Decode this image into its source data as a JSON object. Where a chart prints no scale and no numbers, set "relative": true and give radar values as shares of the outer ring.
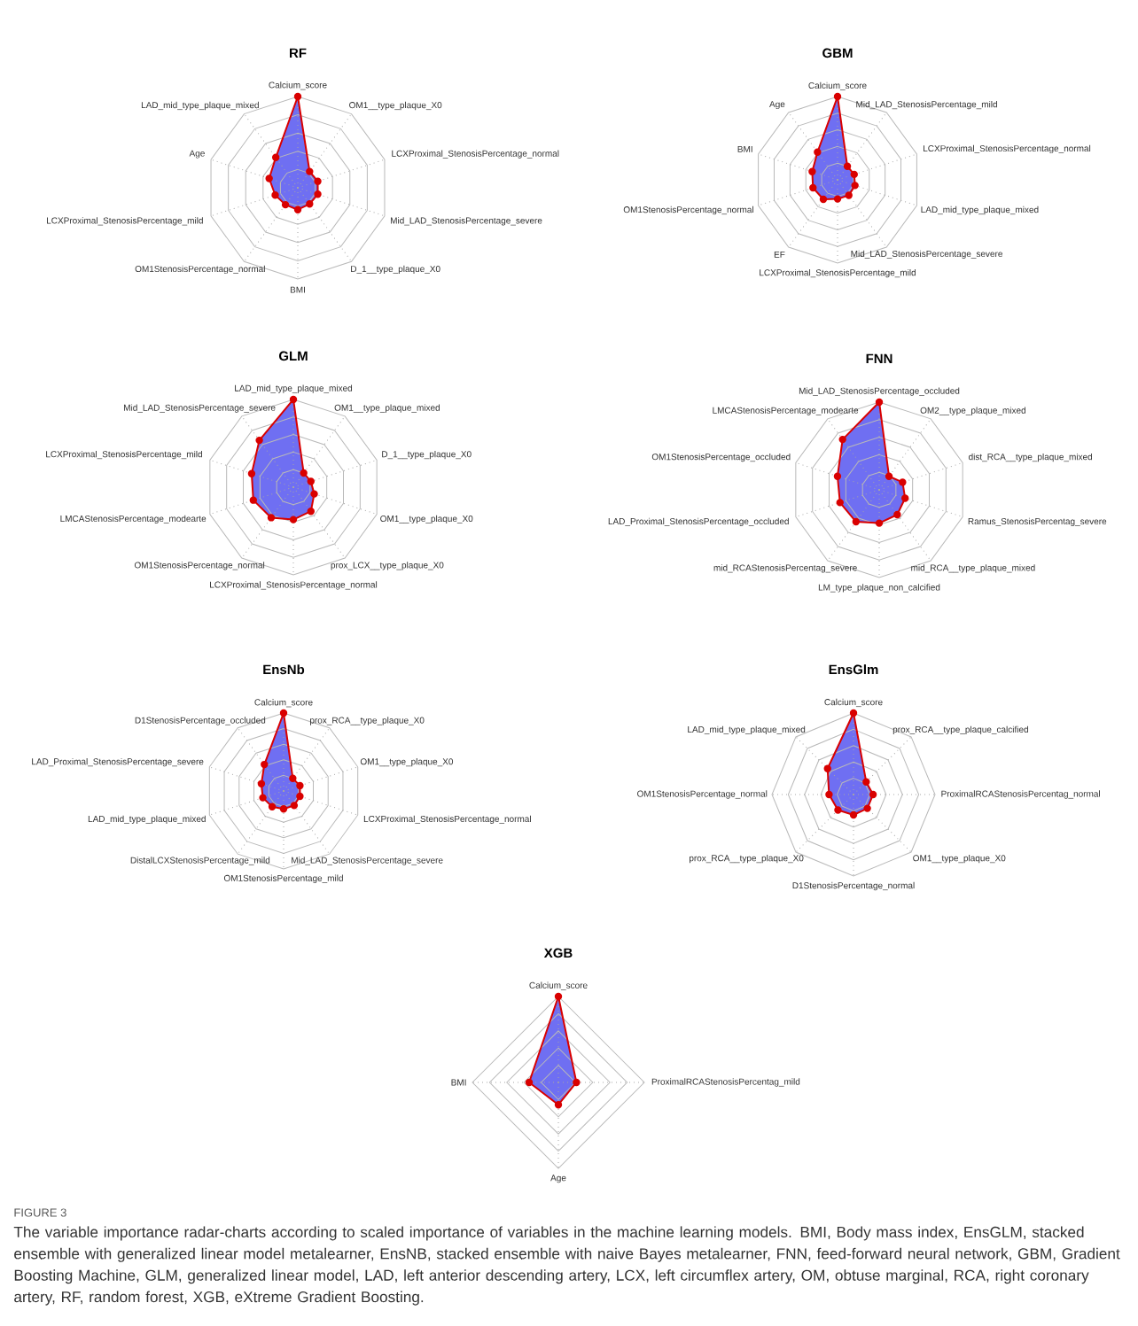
{
  "chart_data": [
    {
      "type": "radar",
      "title": "RF",
      "relative": true,
      "grid": true,
      "marker": "circle",
      "categories": [
        "Calcium_score",
        "OM1__type_plaque_X0",
        "LCXProximal_StenosisPercentage_normal",
        "Mid_LAD_StenosisPercentage_severe",
        "D_1__type_plaque_X0",
        "BMI",
        "OM1StenosisPercentage_normal",
        "LCXProximal_StenosisPercentage_mild",
        "Age",
        "LAD_mid_type_plaque_mixed"
      ],
      "series": [
        {
          "color": "#6f6ff2",
          "values": [
            1,
            0.22,
            0.23,
            0.23,
            0.22,
            0.24,
            0.23,
            0.26,
            0.33,
            0.41
          ]
        }
      ]
    },
    {
      "type": "radar",
      "title": "GBM",
      "relative": true,
      "grid": true,
      "marker": "circle",
      "categories": [
        "Calcium_score",
        "Mid_LAD_StenosisPercentage_mild",
        "LCXProximal_StenosisPercentage_normal",
        "LAD_mid_type_plaque_mixed",
        "Mid_LAD_StenosisPercentage_severe",
        "LCXProximal_StenosisPercentage_mild",
        "EF",
        "OM1StenosisPercentage_normal",
        "BMI",
        "Age"
      ],
      "series": [
        {
          "color": "#6f6ff2",
          "values": [
            1,
            0.2,
            0.21,
            0.22,
            0.23,
            0.23,
            0.29,
            0.31,
            0.32,
            0.41
          ]
        }
      ]
    },
    {
      "type": "radar",
      "title": "GLM",
      "relative": true,
      "grid": true,
      "marker": "circle",
      "categories": [
        "LAD_mid_type_plaque_mixed",
        "OM1__type_plaque_mixed",
        "D_1__type_plaque_X0",
        "OM1__type_plaque_X0",
        "prox_LCX__type_plaque_X0",
        "LCXProximal_StenosisPercentage_normal",
        "OM1StenosisPercentage_normal",
        "LMCAStenosisPercentage_modearte",
        "LCXProximal_StenosisPercentage_mild",
        "Mid_LAD_StenosisPercentage_severe"
      ],
      "series": [
        {
          "color": "#6f6ff2",
          "values": [
            1,
            0.2,
            0.21,
            0.25,
            0.34,
            0.37,
            0.43,
            0.48,
            0.5,
            0.66
          ]
        }
      ]
    },
    {
      "type": "radar",
      "title": "FNN",
      "relative": true,
      "grid": true,
      "marker": "circle",
      "categories": [
        "Mid_LAD_StenosisPercentage_occluded",
        "OM2__type_plaque_mixed",
        "dist_RCA__type_plaque_mixed",
        "Ramus_StenosisPercentag_severe",
        "mid_RCA__type_plaque_mixed",
        "LM_type_plaque_non_calcified",
        "mid_RCAStenosisPercentag_severe",
        "LAD_Proximal_StenosisPercentage_occluded",
        "OM1StenosisPercentage_occluded",
        "LMCAStenosisPercentage_modearte"
      ],
      "series": [
        {
          "color": "#6f6ff2",
          "values": [
            1,
            0.19,
            0.28,
            0.31,
            0.35,
            0.38,
            0.45,
            0.47,
            0.5,
            0.71
          ]
        }
      ]
    },
    {
      "type": "radar",
      "title": "EnsNb",
      "relative": true,
      "grid": true,
      "marker": "circle",
      "categories": [
        "Calcium_score",
        "prox_RCA__type_plaque_X0",
        "OM1__type_plaque_X0",
        "LCXProximal_StenosisPercentage_normal",
        "Mid_LAD_StenosisPercentage_severe",
        "OM1StenosisPercentage_mild",
        "DistalLCXStenosisPercentage_mild",
        "LAD_mid_type_plaque_mixed",
        "LAD_Proximal_StenosisPercentage_severe",
        "D1StenosisPercentage_occluded"
      ],
      "series": [
        {
          "color": "#6f6ff2",
          "values": [
            1,
            0.2,
            0.22,
            0.22,
            0.23,
            0.23,
            0.25,
            0.28,
            0.3,
            0.42
          ]
        }
      ]
    },
    {
      "type": "radar",
      "title": "EnsGlm",
      "relative": true,
      "grid": true,
      "marker": "circle",
      "categories": [
        "Calcium_score",
        "prox_RCA__type_plaque_calcified",
        "ProximalRCAStenosisPercentag_normal",
        "OM1__type_plaque_X0",
        "D1StenosisPercentage_normal",
        "prox_RCA__type_plaque_X0",
        "OM1StenosisPercentage_normal",
        "LAD_mid_type_plaque_mixed"
      ],
      "series": [
        {
          "color": "#6f6ff2",
          "values": [
            1,
            0.22,
            0.24,
            0.24,
            0.25,
            0.27,
            0.3,
            0.45
          ]
        }
      ]
    },
    {
      "type": "radar",
      "title": "XGB",
      "relative": true,
      "grid": true,
      "marker": "circle",
      "categories": [
        "Calcium_score",
        "ProximalRCAStenosisPercentag_mild",
        "Age",
        "BMI"
      ],
      "series": [
        {
          "color": "#6f6ff2",
          "values": [
            1,
            0.21,
            0.26,
            0.34
          ]
        }
      ]
    },
    {
      "type": "other",
      "title": "FIGURE 3",
      "annotations": [
        "The variable importance radar-charts according to scaled importance of variables in the machine learning models. BMI, Body mass index, EnsGLM, stacked ensemble with generalized linear model metalearner, EnsNB, stacked ensemble with naive Bayes metalearner, FNN, feed-forward neural network, GBM, Gradient Boosting Machine, GLM, generalized linear model, LAD, left anterior descending artery, LCX, left circumflex artery, OM, obtuse marginal, RCA, right coronary artery, RF, random forest, XGB, eXtreme Gradient Boosting."
      ]
    }
  ]
}
